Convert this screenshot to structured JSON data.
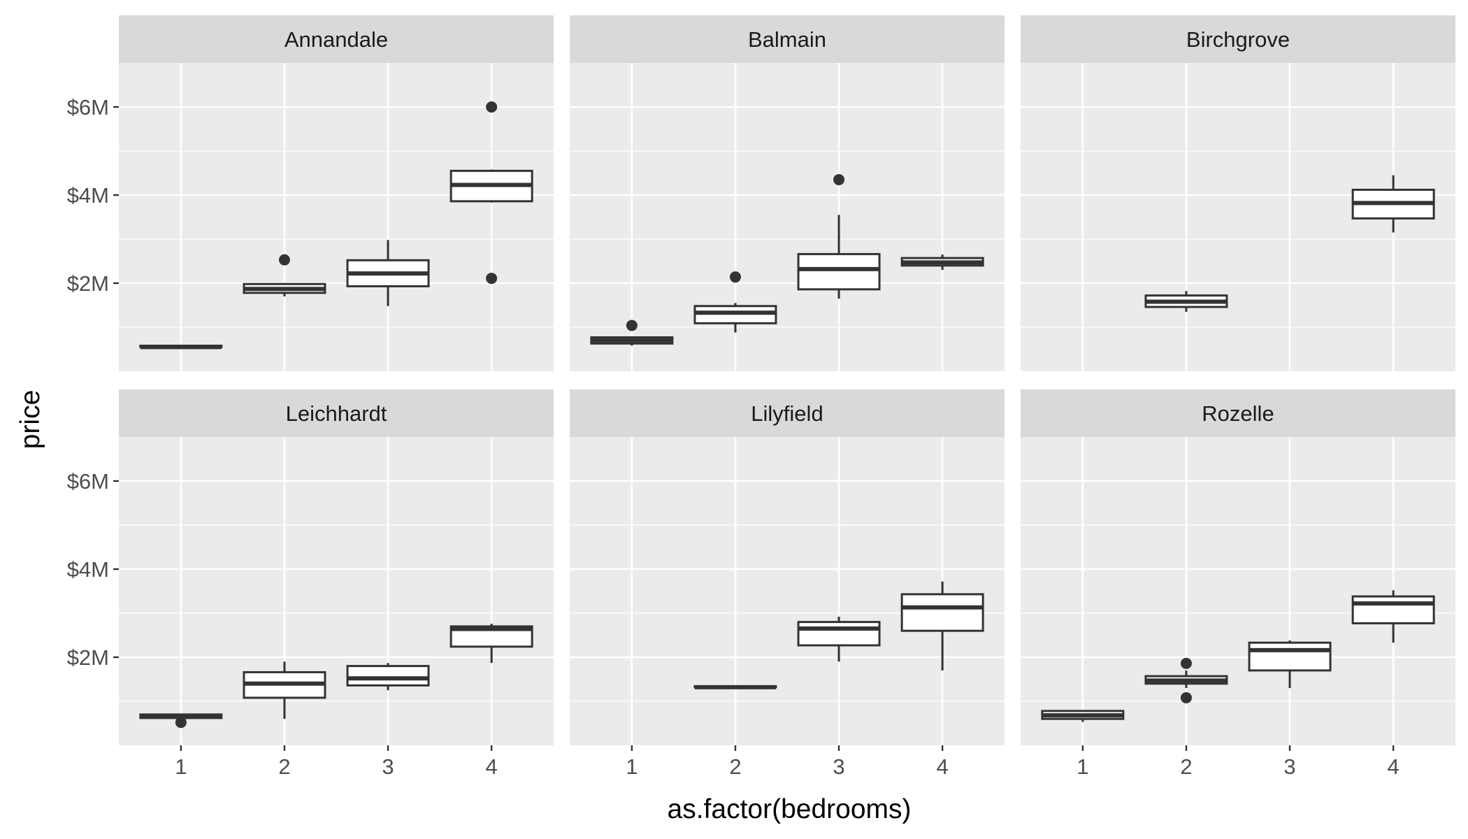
{
  "chart_data": {
    "type": "boxplot",
    "facet_layout": "2 rows x 3 columns",
    "xlabel": "as.factor(bedrooms)",
    "ylabel": "price",
    "categories": [
      "1",
      "2",
      "3",
      "4"
    ],
    "y_ticks": [
      {
        "value": 2000000,
        "label": "$2M"
      },
      {
        "value": 4000000,
        "label": "$4M"
      },
      {
        "value": 6000000,
        "label": "$6M"
      }
    ],
    "y_minor_ticks": [
      1000000,
      3000000,
      5000000
    ],
    "ylim": [
      0,
      7000000
    ],
    "grid": true,
    "colors": {
      "panel_bg": "#EBEBEB",
      "strip_bg": "#D9D9D9",
      "grid": "#FFFFFF",
      "box_line": "#333333",
      "box_fill": "#FFFFFF",
      "outlier": "#333333"
    },
    "panels": [
      {
        "name": "Annandale",
        "boxes": [
          {
            "x": "1",
            "min": 550000,
            "q1": 550000,
            "median": 550000,
            "q3": 580000,
            "max": 580000,
            "outliers": []
          },
          {
            "x": "2",
            "min": 1700000,
            "q1": 1780000,
            "median": 1870000,
            "q3": 1980000,
            "max": 2000000,
            "outliers": [
              2530000
            ]
          },
          {
            "x": "3",
            "min": 1480000,
            "q1": 1930000,
            "median": 2220000,
            "q3": 2520000,
            "max": 2980000,
            "outliers": []
          },
          {
            "x": "4",
            "min": 3830000,
            "q1": 3860000,
            "median": 4230000,
            "q3": 4550000,
            "max": 4580000,
            "outliers": [
              6000000,
              2110000
            ]
          }
        ]
      },
      {
        "name": "Balmain",
        "boxes": [
          {
            "x": "1",
            "min": 580000,
            "q1": 630000,
            "median": 700000,
            "q3": 770000,
            "max": 770000,
            "outliers": [
              1040000
            ]
          },
          {
            "x": "2",
            "min": 880000,
            "q1": 1090000,
            "median": 1330000,
            "q3": 1480000,
            "max": 1550000,
            "outliers": [
              2140000
            ]
          },
          {
            "x": "3",
            "min": 1650000,
            "q1": 1860000,
            "median": 2320000,
            "q3": 2660000,
            "max": 3550000,
            "outliers": [
              4350000
            ]
          },
          {
            "x": "4",
            "min": 2300000,
            "q1": 2400000,
            "median": 2470000,
            "q3": 2570000,
            "max": 2650000,
            "outliers": []
          }
        ]
      },
      {
        "name": "Birchgrove",
        "boxes": [
          {
            "x": "2",
            "min": 1350000,
            "q1": 1460000,
            "median": 1580000,
            "q3": 1720000,
            "max": 1820000,
            "outliers": []
          },
          {
            "x": "4",
            "min": 3150000,
            "q1": 3470000,
            "median": 3820000,
            "q3": 4120000,
            "max": 4450000,
            "outliers": []
          }
        ]
      },
      {
        "name": "Leichhardt",
        "boxes": [
          {
            "x": "1",
            "min": 620000,
            "q1": 620000,
            "median": 650000,
            "q3": 700000,
            "max": 700000,
            "outliers": [
              520000
            ]
          },
          {
            "x": "2",
            "min": 600000,
            "q1": 1080000,
            "median": 1400000,
            "q3": 1660000,
            "max": 1900000,
            "outliers": []
          },
          {
            "x": "3",
            "min": 1250000,
            "q1": 1360000,
            "median": 1520000,
            "q3": 1800000,
            "max": 1870000,
            "outliers": []
          },
          {
            "x": "4",
            "min": 1870000,
            "q1": 2240000,
            "median": 2640000,
            "q3": 2700000,
            "max": 2760000,
            "outliers": []
          }
        ]
      },
      {
        "name": "Lilyfield",
        "boxes": [
          {
            "x": "2",
            "min": 1320000,
            "q1": 1320000,
            "median": 1320000,
            "q3": 1340000,
            "max": 1340000,
            "outliers": []
          },
          {
            "x": "3",
            "min": 1900000,
            "q1": 2270000,
            "median": 2650000,
            "q3": 2800000,
            "max": 2920000,
            "outliers": []
          },
          {
            "x": "4",
            "min": 1700000,
            "q1": 2600000,
            "median": 3130000,
            "q3": 3430000,
            "max": 3720000,
            "outliers": []
          }
        ]
      },
      {
        "name": "Rozelle",
        "boxes": [
          {
            "x": "1",
            "min": 530000,
            "q1": 600000,
            "median": 680000,
            "q3": 780000,
            "max": 800000,
            "outliers": []
          },
          {
            "x": "2",
            "min": 1300000,
            "q1": 1400000,
            "median": 1470000,
            "q3": 1570000,
            "max": 1700000,
            "outliers": [
              1860000,
              1080000
            ]
          },
          {
            "x": "3",
            "min": 1300000,
            "q1": 1700000,
            "median": 2160000,
            "q3": 2330000,
            "max": 2380000,
            "outliers": []
          },
          {
            "x": "4",
            "min": 2330000,
            "q1": 2770000,
            "median": 3220000,
            "q3": 3380000,
            "max": 3520000,
            "outliers": []
          }
        ]
      }
    ]
  }
}
